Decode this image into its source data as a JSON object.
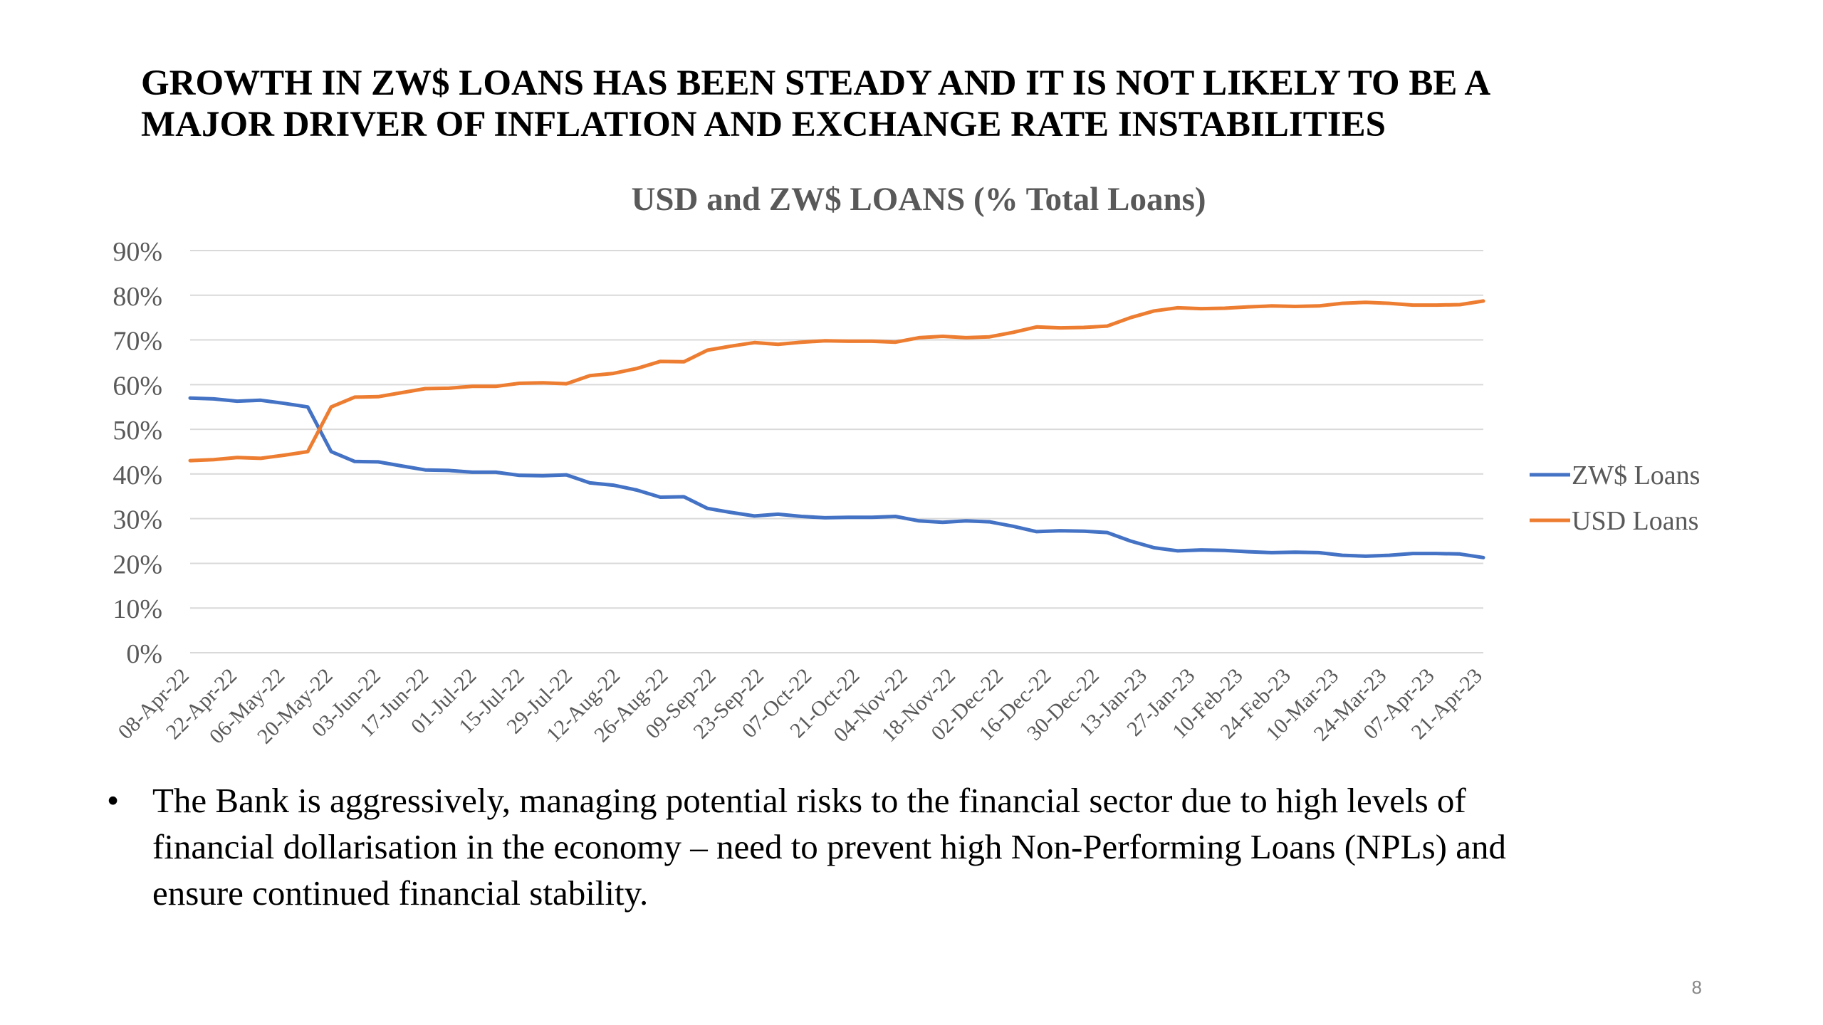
{
  "slide": {
    "title_lines": [
      "GROWTH IN ZW$ LOANS HAS BEEN STEADY AND IT IS NOT LIKELY TO BE A",
      "MAJOR DRIVER OF INFLATION AND EXCHANGE RATE INSTABILITIES"
    ],
    "bullet_symbol": "•",
    "bullet_lines": [
      "The Bank is aggressively, managing potential risks to the financial sector due to high levels of",
      "financial dollarisation in the economy – need to prevent high Non-Performing Loans (NPLs) and",
      "ensure continued financial stability."
    ],
    "page_number": "8"
  },
  "chart_data": {
    "type": "line",
    "title": "USD and ZW$ LOANS (% Total Loans)",
    "xlabel": "",
    "ylabel": "",
    "ylim": [
      0,
      90
    ],
    "y_ticks": [
      0,
      10,
      20,
      30,
      40,
      50,
      60,
      70,
      80,
      90
    ],
    "y_tick_format": "percent",
    "grid": true,
    "legend_position": "right",
    "x_tick_labels": [
      "08-Apr-22",
      "22-Apr-22",
      "06-May-22",
      "20-May-22",
      "03-Jun-22",
      "17-Jun-22",
      "01-Jul-22",
      "15-Jul-22",
      "29-Jul-22",
      "12-Aug-22",
      "26-Aug-22",
      "09-Sep-22",
      "23-Sep-22",
      "07-Oct-22",
      "21-Oct-22",
      "04-Nov-22",
      "18-Nov-22",
      "02-Dec-22",
      "16-Dec-22",
      "30-Dec-22",
      "13-Jan-23",
      "27-Jan-23",
      "10-Feb-23",
      "24-Feb-23",
      "10-Mar-23",
      "24-Mar-23",
      "07-Apr-23",
      "21-Apr-23"
    ],
    "series": [
      {
        "name": "ZW$ Loans",
        "color": "#4472C4",
        "values": [
          57,
          56.8,
          56.3,
          56.5,
          55.8,
          55,
          45,
          42.8,
          42.7,
          41.8,
          40.9,
          40.8,
          40.4,
          40.4,
          39.7,
          39.6,
          39.8,
          38,
          37.5,
          36.4,
          34.8,
          34.9,
          32.3,
          31.4,
          30.6,
          31,
          30.5,
          30.2,
          30.3,
          30.3,
          30.5,
          29.5,
          29.2,
          29.5,
          29.3,
          28.3,
          27.1,
          27.3,
          27.2,
          26.9,
          25,
          23.5,
          22.8,
          23,
          22.9,
          22.6,
          22.4,
          22.5,
          22.4,
          21.8,
          21.6,
          21.8,
          22.2,
          22.2,
          22.1,
          21.3
        ]
      },
      {
        "name": "USD Loans",
        "color": "#ED7D31",
        "values": [
          43,
          43.2,
          43.7,
          43.5,
          44.2,
          45,
          55,
          57.2,
          57.3,
          58.2,
          59.1,
          59.2,
          59.6,
          59.6,
          60.3,
          60.4,
          60.2,
          62,
          62.5,
          63.6,
          65.2,
          65.1,
          67.7,
          68.6,
          69.4,
          69,
          69.5,
          69.8,
          69.7,
          69.7,
          69.5,
          70.5,
          70.8,
          70.5,
          70.7,
          71.7,
          72.9,
          72.7,
          72.8,
          73.1,
          75,
          76.5,
          77.2,
          77,
          77.1,
          77.4,
          77.6,
          77.5,
          77.6,
          78.2,
          78.4,
          78.2,
          77.8,
          77.8,
          77.9,
          78.7
        ]
      }
    ]
  }
}
